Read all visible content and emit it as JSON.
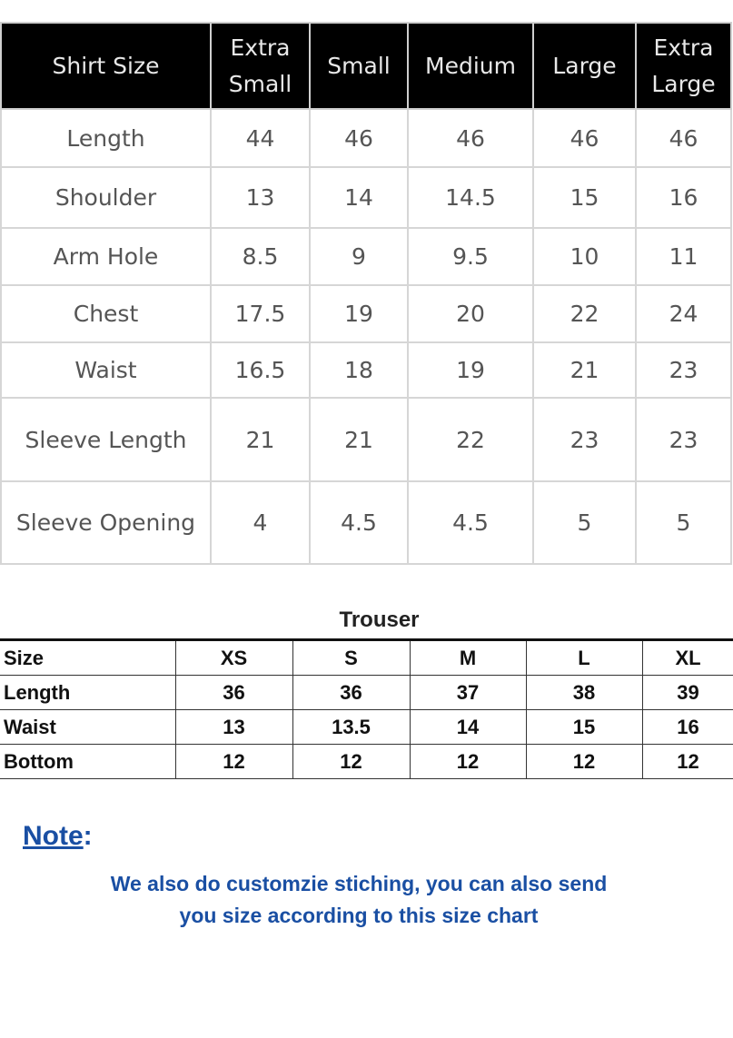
{
  "shirt": {
    "headers": [
      "Shirt Size",
      "Extra Small",
      "Small",
      "Medium",
      "Large",
      "Extra Large"
    ],
    "rows": [
      [
        "Length",
        "44",
        "46",
        "46",
        "46",
        "46"
      ],
      [
        "Shoulder",
        "13",
        "14",
        "14.5",
        "15",
        "16"
      ],
      [
        "Arm Hole",
        "8.5",
        "9",
        "9.5",
        "10",
        "11"
      ],
      [
        "Chest",
        "17.5",
        "19",
        "20",
        "22",
        "24"
      ],
      [
        "Waist",
        "16.5",
        "18",
        "19",
        "21",
        "23"
      ],
      [
        "Sleeve Length",
        "21",
        "21",
        "22",
        "23",
        "23"
      ],
      [
        "Sleeve Opening",
        "4",
        "4.5",
        "4.5",
        "5",
        "5"
      ]
    ]
  },
  "trouser": {
    "title": "Trouser",
    "rows": [
      [
        "Size",
        "XS",
        "S",
        "M",
        "L",
        "XL"
      ],
      [
        "Length",
        "36",
        "36",
        "37",
        "38",
        "39"
      ],
      [
        "Waist",
        "13",
        "13.5",
        "14",
        "15",
        "16"
      ],
      [
        "Bottom",
        "12",
        "12",
        "12",
        "12",
        "12"
      ]
    ]
  },
  "note": {
    "label": "Note",
    "colon": ":",
    "line1": "We also do customzie stiching, you can also send",
    "line2": "you size according to this size chart"
  },
  "colors": {
    "note_blue": "#1a4fa3",
    "header_bg": "#000000"
  }
}
